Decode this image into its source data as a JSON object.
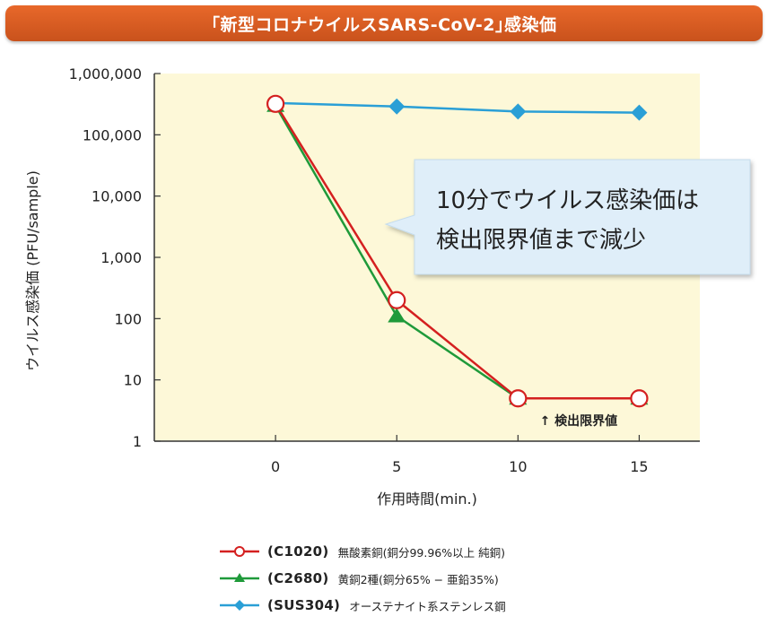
{
  "title": "｢新型コロナウイルスSARS-CoV-2｣感染価",
  "chart_data": {
    "type": "line",
    "ylabel": "ウイルス感染価 (PFU/sample)",
    "xlabel": "作用時間(min.)",
    "y_scale": "log",
    "ylim": [
      1,
      1000000
    ],
    "xlim": [
      -5,
      17.5
    ],
    "x_ticks": [
      0,
      5,
      10,
      15
    ],
    "x_tick_labels": [
      "0",
      "5",
      "10",
      "15"
    ],
    "y_ticks": [
      1,
      10,
      100,
      1000,
      10000,
      100000,
      1000000
    ],
    "y_tick_labels": [
      "1",
      "10",
      "100",
      "1,000",
      "10,000",
      "100,000",
      "1,000,000"
    ],
    "grid": false,
    "background": "#fdf8d8",
    "series": [
      {
        "name": "(C1020)",
        "x": [
          0,
          5,
          10,
          15
        ],
        "y": [
          320000,
          200,
          5,
          5
        ],
        "color": "#d42020",
        "marker": "open-circle"
      },
      {
        "name": "(C2680)",
        "x": [
          0,
          5,
          10,
          15
        ],
        "y": [
          300000,
          110,
          5,
          5
        ],
        "color": "#1f9a3a",
        "marker": "triangle"
      },
      {
        "name": "(SUS304)",
        "x": [
          0,
          5,
          10,
          15
        ],
        "y": [
          330000,
          290000,
          240000,
          230000
        ],
        "color": "#2a9fd6",
        "marker": "diamond"
      }
    ],
    "annotations": {
      "callout": [
        "10分でウイルス感染価は",
        "検出限界値まで減少"
      ],
      "detection_limit": "↑ 検出限界値"
    }
  },
  "legend": [
    {
      "code": "(C1020)",
      "desc": "無酸素銅(銅分99.96%以上 純銅)",
      "color": "#d42020",
      "marker": "open-circle"
    },
    {
      "code": "(C2680)",
      "desc": "黄銅2種(銅分65% − 亜鉛35%)",
      "color": "#1f9a3a",
      "marker": "triangle"
    },
    {
      "code": "(SUS304)",
      "desc": "オーステナイト系ステンレス鋼",
      "color": "#2a9fd6",
      "marker": "diamond"
    }
  ]
}
